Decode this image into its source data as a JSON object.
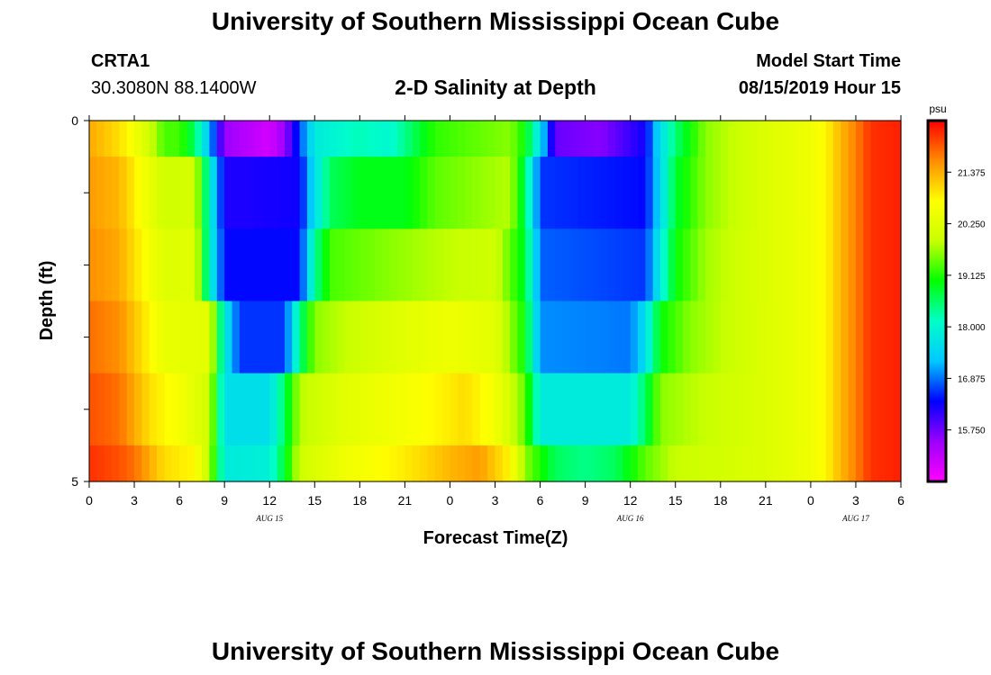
{
  "header": {
    "title": "University of Southern Mississippi Ocean Cube",
    "station_id": "CRTA1",
    "station_coords": "30.3080N 88.1400W",
    "plot_title": "2-D Salinity at Depth",
    "model_start_label": "Model Start Time",
    "model_start_value": "08/15/2019 Hour 15"
  },
  "footer": {
    "title": "University of Southern Mississippi Ocean Cube"
  },
  "chart_data": {
    "type": "heatmap",
    "title": "2-D Salinity at Depth",
    "xlabel": "Forecast Time(Z)",
    "ylabel": "Depth (ft)",
    "x_ticks": [
      "0",
      "3",
      "6",
      "9",
      "12",
      "15",
      "18",
      "21",
      "0",
      "3",
      "6",
      "9",
      "12",
      "15",
      "18",
      "21",
      "0",
      "3",
      "6"
    ],
    "x_date_labels": [
      {
        "label": "AUG 15",
        "tick_index": 4
      },
      {
        "label": "AUG 16",
        "tick_index": 12
      },
      {
        "label": "AUG 17",
        "tick_index": 17
      }
    ],
    "y_ticks": [
      "0",
      "5"
    ],
    "ylim": [
      0,
      5
    ],
    "xlim_hours": [
      0,
      54
    ],
    "colorbar": {
      "unit": "psu",
      "min": 14.625,
      "max": 22.5,
      "tick_labels": [
        "21.375",
        "20.250",
        "19.125",
        "18.000",
        "16.875",
        "15.750"
      ],
      "tick_values": [
        21.375,
        20.25,
        19.125,
        18.0,
        16.875,
        15.75
      ],
      "colors": [
        "#ff00ff",
        "#9b00ff",
        "#0000ff",
        "#00c8ff",
        "#00ffc8",
        "#00ff00",
        "#c8ff00",
        "#ffff00",
        "#ff8c00",
        "#ff0000"
      ]
    },
    "depth_layers": [
      {
        "depth": "0.0-0.5 ft",
        "keys": [
          [
            0,
            21.4
          ],
          [
            2,
            21.0
          ],
          [
            3,
            20.6
          ],
          [
            4,
            20.0
          ],
          [
            5,
            19.3
          ],
          [
            6,
            19.3
          ],
          [
            7,
            18.6
          ],
          [
            8,
            17.2
          ],
          [
            9,
            15.5
          ],
          [
            12,
            15.0
          ],
          [
            13,
            15.5
          ],
          [
            15,
            17.8
          ],
          [
            18,
            18.2
          ],
          [
            20,
            18.0
          ],
          [
            23,
            19.2
          ],
          [
            28,
            19.6
          ],
          [
            29,
            19.0
          ],
          [
            30,
            17.6
          ],
          [
            31,
            15.8
          ],
          [
            34,
            15.6
          ],
          [
            37,
            16.3
          ],
          [
            38,
            17.6
          ],
          [
            39,
            18.5
          ],
          [
            41,
            19.6
          ],
          [
            45,
            20.2
          ],
          [
            48,
            20.5
          ],
          [
            49,
            20.8
          ],
          [
            50,
            21.3
          ],
          [
            51,
            21.7
          ],
          [
            52,
            22.2
          ],
          [
            54,
            22.3
          ]
        ]
      },
      {
        "depth": "0.5-1.5 ft",
        "keys": [
          [
            0,
            21.5
          ],
          [
            2,
            21.3
          ],
          [
            3,
            20.9
          ],
          [
            4,
            20.4
          ],
          [
            5,
            20.0
          ],
          [
            7,
            20.1
          ],
          [
            8,
            18.0
          ],
          [
            9,
            16.2
          ],
          [
            14,
            16.3
          ],
          [
            15,
            17.6
          ],
          [
            16,
            18.6
          ],
          [
            18,
            18.9
          ],
          [
            21,
            18.9
          ],
          [
            23,
            19.4
          ],
          [
            28,
            19.8
          ],
          [
            29,
            18.6
          ],
          [
            30,
            16.6
          ],
          [
            37,
            16.4
          ],
          [
            38,
            17.5
          ],
          [
            39,
            18.8
          ],
          [
            41,
            19.6
          ],
          [
            45,
            20.2
          ],
          [
            48,
            20.5
          ],
          [
            49,
            20.8
          ],
          [
            50,
            21.3
          ],
          [
            51,
            21.7
          ],
          [
            52,
            22.2
          ],
          [
            54,
            22.3
          ]
        ]
      },
      {
        "depth": "1.5-2.5 ft",
        "keys": [
          [
            0,
            21.6
          ],
          [
            2,
            21.4
          ],
          [
            3,
            21.0
          ],
          [
            4,
            20.6
          ],
          [
            5,
            20.2
          ],
          [
            7,
            20.3
          ],
          [
            8,
            18.0
          ],
          [
            9,
            16.4
          ],
          [
            14,
            16.4
          ],
          [
            15,
            18.3
          ],
          [
            16,
            19.3
          ],
          [
            20,
            19.6
          ],
          [
            23,
            19.8
          ],
          [
            27,
            20.0
          ],
          [
            29,
            18.8
          ],
          [
            30,
            16.8
          ],
          [
            37,
            16.6
          ],
          [
            38,
            17.8
          ],
          [
            39,
            19.0
          ],
          [
            41,
            19.7
          ],
          [
            45,
            20.2
          ],
          [
            48,
            20.5
          ],
          [
            49,
            20.8
          ],
          [
            50,
            21.3
          ],
          [
            51,
            21.7
          ],
          [
            52,
            22.2
          ],
          [
            54,
            22.3
          ]
        ]
      },
      {
        "depth": "2.5-3.5 ft",
        "keys": [
          [
            0,
            21.8
          ],
          [
            2,
            21.6
          ],
          [
            3,
            21.2
          ],
          [
            4,
            20.8
          ],
          [
            5,
            20.4
          ],
          [
            8,
            20.3
          ],
          [
            9,
            17.8
          ],
          [
            10,
            16.6
          ],
          [
            13,
            16.6
          ],
          [
            14,
            18.4
          ],
          [
            15,
            19.6
          ],
          [
            18,
            20.0
          ],
          [
            21,
            20.3
          ],
          [
            24,
            20.5
          ],
          [
            27,
            20.3
          ],
          [
            29,
            19.0
          ],
          [
            30,
            17.0
          ],
          [
            36,
            16.9
          ],
          [
            37,
            17.6
          ],
          [
            38,
            19.0
          ],
          [
            40,
            19.6
          ],
          [
            45,
            20.2
          ],
          [
            48,
            20.5
          ],
          [
            49,
            20.8
          ],
          [
            50,
            21.3
          ],
          [
            51,
            21.7
          ],
          [
            52,
            22.2
          ],
          [
            54,
            22.3
          ]
        ]
      },
      {
        "depth": "3.5-4.5 ft",
        "keys": [
          [
            0,
            22.0
          ],
          [
            2,
            21.8
          ],
          [
            3,
            21.4
          ],
          [
            4,
            21.0
          ],
          [
            5,
            20.8
          ],
          [
            6,
            20.6
          ],
          [
            8,
            20.0
          ],
          [
            9,
            17.6
          ],
          [
            12,
            17.6
          ],
          [
            13,
            18.6
          ],
          [
            14,
            19.8
          ],
          [
            17,
            20.3
          ],
          [
            21,
            20.6
          ],
          [
            25,
            21.0
          ],
          [
            27,
            20.6
          ],
          [
            29,
            19.4
          ],
          [
            30,
            17.8
          ],
          [
            36,
            17.8
          ],
          [
            37,
            18.6
          ],
          [
            38,
            19.6
          ],
          [
            40,
            19.8
          ],
          [
            45,
            20.2
          ],
          [
            48,
            20.5
          ],
          [
            49,
            20.8
          ],
          [
            50,
            21.3
          ],
          [
            51,
            21.7
          ],
          [
            52,
            22.2
          ],
          [
            54,
            22.3
          ]
        ]
      },
      {
        "depth": "4.5-5.0 ft",
        "keys": [
          [
            0,
            22.2
          ],
          [
            2,
            22.0
          ],
          [
            3,
            21.8
          ],
          [
            4,
            21.4
          ],
          [
            5,
            21.0
          ],
          [
            7,
            20.8
          ],
          [
            8,
            19.8
          ],
          [
            9,
            17.8
          ],
          [
            12,
            17.9
          ],
          [
            13,
            18.8
          ],
          [
            14,
            20.0
          ],
          [
            17,
            20.5
          ],
          [
            20,
            20.8
          ],
          [
            22,
            21.0
          ],
          [
            24,
            21.3
          ],
          [
            26,
            21.5
          ],
          [
            28,
            20.8
          ],
          [
            29,
            19.6
          ],
          [
            31,
            18.6
          ],
          [
            33,
            18.4
          ],
          [
            35,
            18.6
          ],
          [
            37,
            19.4
          ],
          [
            39,
            19.9
          ],
          [
            45,
            20.2
          ],
          [
            48,
            20.5
          ],
          [
            49,
            20.8
          ],
          [
            50,
            21.3
          ],
          [
            51,
            21.7
          ],
          [
            52,
            22.2
          ],
          [
            54,
            22.3
          ]
        ]
      }
    ]
  }
}
